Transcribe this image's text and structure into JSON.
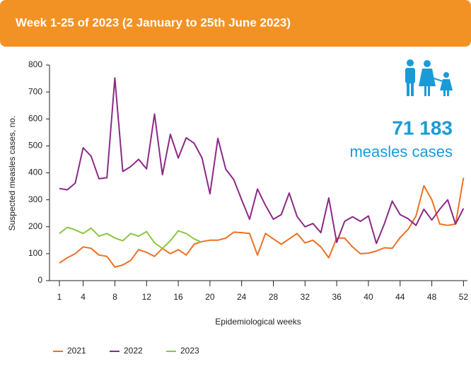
{
  "chart_data": {
    "type": "line",
    "title": "Week 1-25 of 2023 (2 January to 25th June 2023)",
    "ylabel": "Suspected measles cases, no.",
    "xlabel": "Epidemiological weeks",
    "callout": {
      "number": "71 183",
      "text": "measles cases"
    },
    "x": [
      1,
      2,
      3,
      4,
      5,
      6,
      7,
      8,
      9,
      10,
      11,
      12,
      13,
      14,
      15,
      16,
      17,
      18,
      19,
      20,
      21,
      22,
      23,
      24,
      25,
      26,
      27,
      28,
      29,
      30,
      31,
      32,
      33,
      34,
      35,
      36,
      37,
      38,
      39,
      40,
      41,
      42,
      43,
      44,
      45,
      46,
      47,
      48,
      49,
      50,
      51,
      52
    ],
    "series": [
      {
        "name": "2021",
        "color": "#ee7023",
        "values": [
          65,
          85,
          100,
          125,
          120,
          95,
          90,
          50,
          58,
          75,
          115,
          105,
          90,
          120,
          100,
          115,
          95,
          135,
          145,
          150,
          150,
          158,
          180,
          178,
          175,
          95,
          175,
          155,
          135,
          155,
          175,
          140,
          150,
          125,
          85,
          158,
          158,
          125,
          100,
          102,
          110,
          122,
          120,
          160,
          190,
          240,
          352,
          300,
          210,
          205,
          210,
          382
        ]
      },
      {
        "name": "2022",
        "color": "#8b2a85",
        "values": [
          342,
          337,
          362,
          493,
          462,
          378,
          382,
          752,
          405,
          423,
          450,
          415,
          618,
          393,
          543,
          455,
          530,
          510,
          455,
          322,
          528,
          413,
          375,
          300,
          228,
          340,
          280,
          228,
          245,
          325,
          238,
          200,
          212,
          178,
          307,
          142,
          220,
          237,
          220,
          240,
          138,
          210,
          295,
          245,
          230,
          205,
          265,
          225,
          265,
          300,
          210,
          268
        ]
      },
      {
        "name": "2023",
        "color": "#8cc63f",
        "values": [
          175,
          198,
          188,
          175,
          195,
          165,
          175,
          158,
          148,
          175,
          165,
          182,
          140,
          120,
          148,
          185,
          175,
          155,
          142,
          null,
          null,
          null,
          null,
          null,
          null,
          null,
          null,
          null,
          null,
          null,
          null,
          null,
          null,
          null,
          null,
          null,
          null,
          null,
          null,
          null,
          null,
          null,
          null,
          null,
          null,
          null,
          null,
          null,
          null,
          null,
          null,
          null
        ]
      }
    ],
    "xlim": [
      -0.25,
      52.5
    ],
    "xticks": [
      1,
      4,
      8,
      12,
      16,
      20,
      24,
      28,
      32,
      36,
      40,
      44,
      48,
      52
    ],
    "ylim": [
      0,
      800
    ],
    "yticks": [
      0,
      100,
      200,
      300,
      400,
      500,
      600,
      700,
      800
    ],
    "grid": false,
    "legend": "bottom"
  }
}
